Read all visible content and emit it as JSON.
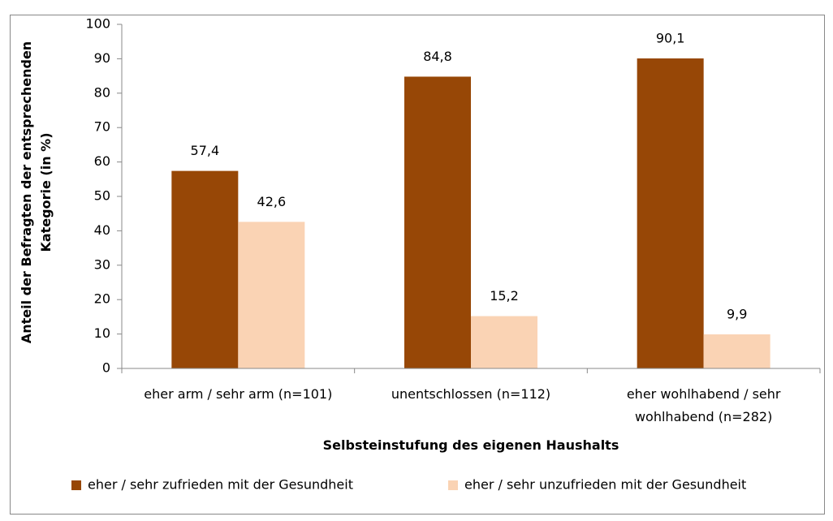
{
  "chart_data": {
    "type": "bar",
    "categories": [
      "eher arm / sehr arm (n=101)",
      "unentschlossen (n=112)",
      "eher wohlhabend / sehr wohlhabend (n=282)"
    ],
    "series": [
      {
        "name": "eher / sehr zufrieden mit der Gesundheit",
        "color": "#974706",
        "values": [
          57.4,
          84.8,
          90.1
        ],
        "value_labels": [
          "57,4",
          "84,8",
          "90,1"
        ]
      },
      {
        "name": "eher / sehr unzufrieden mit der Gesundheit",
        "color": "#fad3b4",
        "values": [
          42.6,
          15.2,
          9.9
        ],
        "value_labels": [
          "42,6",
          "15,2",
          "9,9"
        ]
      }
    ],
    "y_label": "Anteil der Befragten der entsprechenden Kategorie (in %)",
    "x_label": "Selbsteinstufung des eigenen Haushalts",
    "ylim": [
      0,
      100
    ],
    "yticks": [
      0,
      10,
      20,
      30,
      40,
      50,
      60,
      70,
      80,
      90,
      100
    ],
    "grid": false,
    "legend": "bottom"
  }
}
